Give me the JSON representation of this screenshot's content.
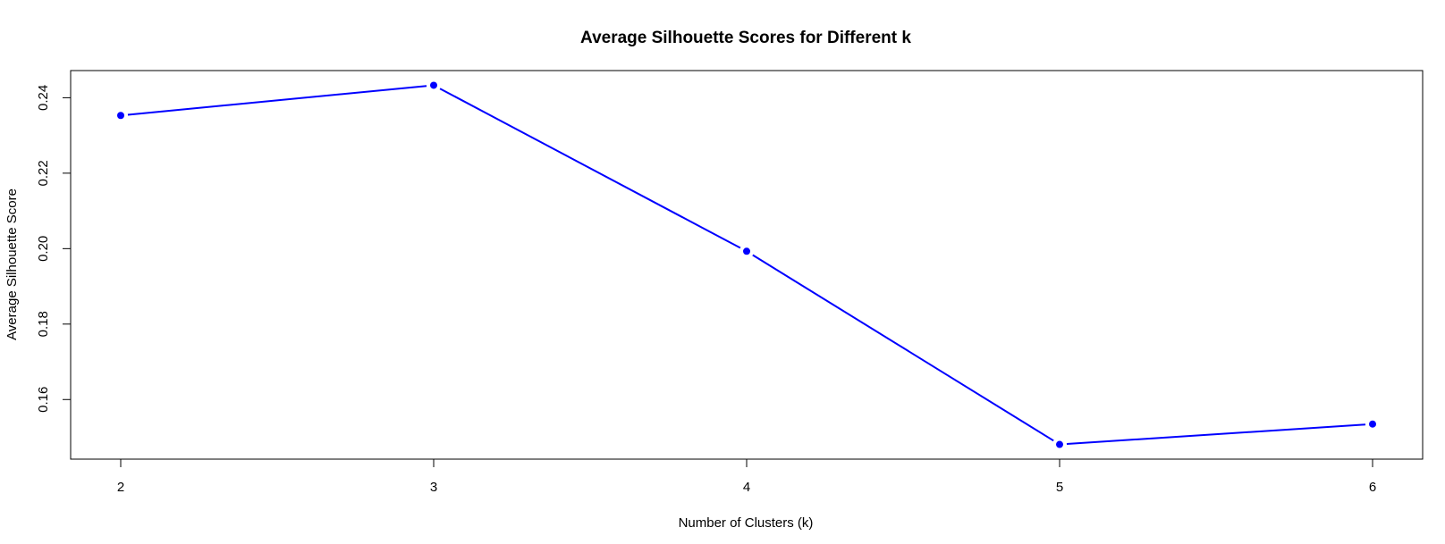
{
  "chart_data": {
    "type": "line",
    "title": "Average Silhouette Scores for Different k",
    "xlabel": "Number of Clusters (k)",
    "ylabel": "Average Silhouette Score",
    "x": [
      2,
      3,
      4,
      5,
      6
    ],
    "x_ticks": [
      "2",
      "3",
      "4",
      "5",
      "6"
    ],
    "y_ticks": [
      "0.16",
      "0.18",
      "0.20",
      "0.22",
      "0.24"
    ],
    "series": [
      {
        "values": [
          0.2353,
          0.2433,
          0.1993,
          0.1481,
          0.1535
        ],
        "color": "#0000ff"
      }
    ],
    "xlim": [
      1.84,
      6.16
    ],
    "ylim": [
      0.1442,
      0.2472
    ],
    "grid": false,
    "legend": "none",
    "marker": "filled-circle"
  }
}
